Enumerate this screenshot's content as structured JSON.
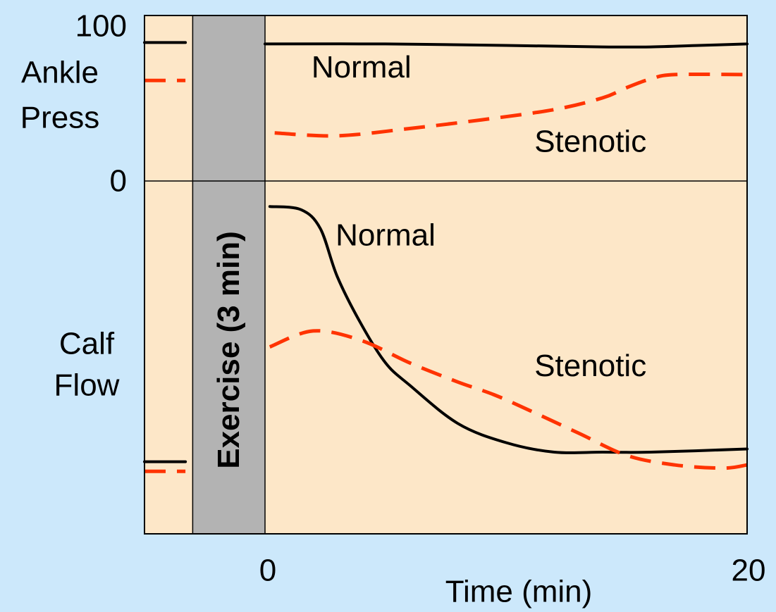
{
  "chart_data": {
    "type": "line",
    "x_axis": {
      "label": "Time (min)",
      "range": [
        -5,
        20
      ],
      "ticks": [
        {
          "value": 0,
          "label": "0"
        },
        {
          "value": 20,
          "label": "20"
        }
      ]
    },
    "exercise_band": {
      "x_start": -3,
      "x_end": 0,
      "label": "Exercise (3 min)",
      "color": "#b3b3b3"
    },
    "panels": [
      {
        "id": "ankle",
        "label_lines": [
          "Ankle",
          "Press"
        ],
        "y_range": [
          0,
          100
        ],
        "y_ticks": [
          {
            "value": 100,
            "label": "100"
          },
          {
            "value": 0,
            "label": "0"
          }
        ],
        "series": [
          {
            "name": "Normal",
            "style": "solid",
            "color": "#000000",
            "segments": [
              [
                [
                  -5,
                  95
                ],
                [
                  -3.3,
                  95
                ]
              ],
              [
                [
                  0,
                  94
                ],
                [
                  5,
                  94
                ],
                [
                  10,
                  93
                ],
                [
                  14,
                  92
                ],
                [
                  16,
                  92
                ],
                [
                  18,
                  93
                ],
                [
                  20,
                  94
                ]
              ]
            ]
          },
          {
            "name": "Stenotic",
            "style": "dashed",
            "color": "#ff3300",
            "segments": [
              [
                [
                  -5,
                  69
                ],
                [
                  -3.3,
                  69
                ]
              ],
              [
                [
                  0.4,
                  33
                ],
                [
                  3,
                  31
                ],
                [
                  6,
                  36
                ],
                [
                  9,
                  42
                ],
                [
                  12,
                  49
                ],
                [
                  14,
                  57
                ],
                [
                  15,
                  64
                ],
                [
                  16,
                  70
                ],
                [
                  17,
                  73
                ],
                [
                  20,
                  73
                ]
              ]
            ]
          }
        ]
      },
      {
        "id": "calf",
        "label_lines": [
          "Calf",
          "Flow"
        ],
        "y_range": [
          0,
          100
        ],
        "series": [
          {
            "name": "Normal",
            "style": "solid",
            "color": "#000000",
            "segments": [
              [
                [
                  -5,
                  12
                ],
                [
                  -3.3,
                  12
                ]
              ],
              [
                [
                  0.2,
                  92
                ],
                [
                  1.5,
                  91
                ],
                [
                  2.3,
                  85
                ],
                [
                  3,
                  70
                ],
                [
                  4,
                  55
                ],
                [
                  5,
                  43
                ],
                [
                  6,
                  36
                ],
                [
                  8,
                  24
                ],
                [
                  10,
                  18
                ],
                [
                  12,
                  15
                ],
                [
                  14,
                  15
                ],
                [
                  16,
                  15
                ],
                [
                  20,
                  16
                ]
              ]
            ]
          },
          {
            "name": "Stenotic",
            "style": "dashed",
            "color": "#ff3300",
            "segments": [
              [
                [
                  -5,
                  9
                ],
                [
                  -3.3,
                  9
                ]
              ],
              [
                [
                  0.2,
                  48
                ],
                [
                  2,
                  53
                ],
                [
                  4,
                  50
                ],
                [
                  6,
                  43
                ],
                [
                  8,
                  37
                ],
                [
                  9.5,
                  33
                ],
                [
                  11,
                  28
                ],
                [
                  13,
                  21
                ],
                [
                  15,
                  14
                ],
                [
                  17,
                  11
                ],
                [
                  19,
                  10
                ],
                [
                  20,
                  11
                ]
              ]
            ]
          }
        ]
      }
    ],
    "annotations": [
      {
        "panel": "ankle",
        "text": "Normal",
        "x": 4,
        "y": 78
      },
      {
        "panel": "ankle",
        "text": "Stenotic",
        "x": 13.5,
        "y": 27
      },
      {
        "panel": "calf",
        "text": "Normal",
        "x": 5,
        "y": 83
      },
      {
        "panel": "calf",
        "text": "Stenotic",
        "x": 13.5,
        "y": 42
      }
    ]
  }
}
